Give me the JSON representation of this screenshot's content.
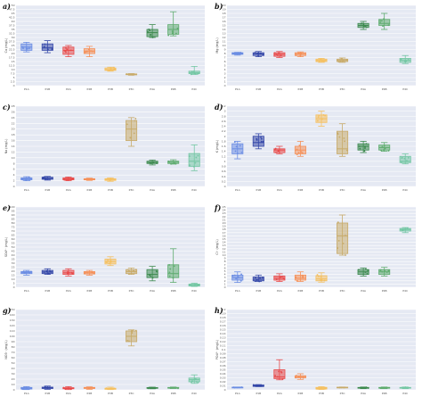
{
  "figure": {
    "colors": {
      "background": "#e5e9f3",
      "grid": "#ffffff"
    }
  },
  "chart_data": [
    {
      "panel": "a)",
      "type": "box",
      "ylabel": "Ca (mg/L)",
      "ylim": [
        0,
        50
      ],
      "yticks": [
        0,
        2.5,
        5,
        7.5,
        10,
        12.5,
        15,
        17.5,
        20,
        22.5,
        25,
        27.5,
        30,
        32.5,
        35,
        37.5,
        40,
        42.5,
        45,
        47.5,
        50
      ],
      "categories": [
        "P1A",
        "P1B",
        "P2A",
        "P2B",
        "P3B",
        "P3C",
        "P4A",
        "P4B",
        "P4C"
      ],
      "colors": [
        "#6b8de3",
        "#3447a8",
        "#e84a4a",
        "#f5915a",
        "#f5c060",
        "#c8ab6a",
        "#3d8a4f",
        "#5fac6f",
        "#74c7a4"
      ],
      "boxes": [
        {
          "min": 21.0,
          "q1": 22.0,
          "median": 24.0,
          "q3": 26.0,
          "max": 27.0
        },
        {
          "min": 20.5,
          "q1": 22.0,
          "median": 23.5,
          "q3": 26.0,
          "max": 28.0
        },
        {
          "min": 18.0,
          "q1": 19.5,
          "median": 22.0,
          "q3": 24.0,
          "max": 25.0
        },
        {
          "min": 18.0,
          "q1": 20.0,
          "median": 21.5,
          "q3": 23.0,
          "max": 24.5
        },
        {
          "min": 9.0,
          "q1": 9.5,
          "median": 10.0,
          "q3": 11.0,
          "max": 11.5
        },
        {
          "min": 6.5,
          "q1": 6.8,
          "median": 7.0,
          "q3": 7.3,
          "max": 7.5
        },
        {
          "min": 30.0,
          "q1": 30.5,
          "median": 33.0,
          "q3": 35.0,
          "max": 38.0
        },
        {
          "min": 31.0,
          "q1": 32.0,
          "median": 35.0,
          "q3": 38.0,
          "max": 46.0
        },
        {
          "min": 7.0,
          "q1": 7.5,
          "median": 8.0,
          "q3": 9.0,
          "max": 12.0
        }
      ]
    },
    {
      "panel": "b)",
      "type": "box",
      "ylabel": "Mg (mg/L)",
      "ylim": [
        0,
        20
      ],
      "yticks": [
        0,
        1,
        2,
        3,
        4,
        5,
        6,
        7,
        8,
        9,
        10,
        11,
        12,
        13,
        14,
        15,
        16,
        17,
        18,
        19,
        20
      ],
      "categories": [
        "P1A",
        "P1B",
        "P2A",
        "P2B",
        "P3B",
        "P3C",
        "P4A",
        "P4B",
        "P4C"
      ],
      "colors": [
        "#6b8de3",
        "#3447a8",
        "#e84a4a",
        "#f5915a",
        "#f5c060",
        "#c8ab6a",
        "#3d8a4f",
        "#5fac6f",
        "#74c7a4"
      ],
      "boxes": [
        {
          "min": 7.6,
          "q1": 7.8,
          "median": 8.0,
          "q3": 8.2,
          "max": 8.3
        },
        {
          "min": 7.2,
          "q1": 7.5,
          "median": 7.9,
          "q3": 8.2,
          "max": 8.5
        },
        {
          "min": 7.0,
          "q1": 7.3,
          "median": 7.8,
          "q3": 8.2,
          "max": 8.5
        },
        {
          "min": 7.2,
          "q1": 7.5,
          "median": 7.9,
          "q3": 8.2,
          "max": 8.4
        },
        {
          "min": 5.8,
          "q1": 6.0,
          "median": 6.3,
          "q3": 6.6,
          "max": 6.8
        },
        {
          "min": 5.8,
          "q1": 6.0,
          "median": 6.3,
          "q3": 6.6,
          "max": 6.9
        },
        {
          "min": 14.0,
          "q1": 14.5,
          "median": 15.0,
          "q3": 15.5,
          "max": 16.0
        },
        {
          "min": 14.0,
          "q1": 15.0,
          "median": 15.5,
          "q3": 16.5,
          "max": 18.0
        },
        {
          "min": 5.5,
          "q1": 5.8,
          "median": 6.3,
          "q3": 6.8,
          "max": 7.5
        }
      ]
    },
    {
      "panel": "c)",
      "type": "box",
      "ylabel": "Na (mg/L)",
      "ylim": [
        0,
        28
      ],
      "yticks": [
        0,
        2,
        4,
        6,
        8,
        10,
        12,
        14,
        16,
        18,
        20,
        22,
        24,
        26,
        28
      ],
      "categories": [
        "P1A",
        "P1B",
        "P2A",
        "P2B",
        "P3B",
        "P3C",
        "P4A",
        "P4B",
        "P4C"
      ],
      "colors": [
        "#6b8de3",
        "#3447a8",
        "#e84a4a",
        "#f5915a",
        "#f5c060",
        "#c8ab6a",
        "#3d8a4f",
        "#5fac6f",
        "#74c7a4"
      ],
      "boxes": [
        {
          "min": 2.0,
          "q1": 2.3,
          "median": 2.7,
          "q3": 3.0,
          "max": 3.4
        },
        {
          "min": 2.2,
          "q1": 2.5,
          "median": 2.8,
          "q3": 3.2,
          "max": 3.5
        },
        {
          "min": 2.0,
          "q1": 2.3,
          "median": 2.6,
          "q3": 3.0,
          "max": 3.3
        },
        {
          "min": 2.1,
          "q1": 2.3,
          "median": 2.5,
          "q3": 2.7,
          "max": 2.9
        },
        {
          "min": 1.8,
          "q1": 2.1,
          "median": 2.4,
          "q3": 2.7,
          "max": 3.0
        },
        {
          "min": 14.0,
          "q1": 16.0,
          "median": 20.0,
          "q3": 23.0,
          "max": 24.0
        },
        {
          "min": 7.5,
          "q1": 8.0,
          "median": 8.4,
          "q3": 8.8,
          "max": 9.2
        },
        {
          "min": 7.8,
          "q1": 8.0,
          "median": 8.5,
          "q3": 8.8,
          "max": 9.3
        },
        {
          "min": 5.5,
          "q1": 7.0,
          "median": 8.8,
          "q3": 11.5,
          "max": 14.5
        }
      ]
    },
    {
      "panel": "d)",
      "type": "box",
      "ylabel": "K (mg/L)",
      "ylim": [
        0,
        3.2
      ],
      "yticks": [
        0,
        0.2,
        0.4,
        0.6,
        0.8,
        1.0,
        1.2,
        1.4,
        1.6,
        1.8,
        2.0,
        2.2,
        2.4,
        2.6,
        2.8,
        3.0,
        3.2
      ],
      "categories": [
        "P1A",
        "P1B",
        "P2A",
        "P2B",
        "P3B",
        "P3C",
        "P4A",
        "P4B",
        "P4C"
      ],
      "colors": [
        "#6b8de3",
        "#3447a8",
        "#e84a4a",
        "#f5915a",
        "#f5c060",
        "#c8ab6a",
        "#3d8a4f",
        "#5fac6f",
        "#74c7a4"
      ],
      "boxes": [
        {
          "min": 1.1,
          "q1": 1.3,
          "median": 1.5,
          "q3": 1.7,
          "max": 1.8
        },
        {
          "min": 1.5,
          "q1": 1.6,
          "median": 1.75,
          "q3": 2.0,
          "max": 2.1
        },
        {
          "min": 1.3,
          "q1": 1.35,
          "median": 1.45,
          "q3": 1.5,
          "max": 1.6
        },
        {
          "min": 1.2,
          "q1": 1.3,
          "median": 1.45,
          "q3": 1.6,
          "max": 1.8
        },
        {
          "min": 2.4,
          "q1": 2.55,
          "median": 2.7,
          "q3": 2.85,
          "max": 3.0
        },
        {
          "min": 1.2,
          "q1": 1.3,
          "median": 1.5,
          "q3": 2.2,
          "max": 2.5
        },
        {
          "min": 1.35,
          "q1": 1.45,
          "median": 1.6,
          "q3": 1.7,
          "max": 1.8
        },
        {
          "min": 1.4,
          "q1": 1.45,
          "median": 1.55,
          "q3": 1.65,
          "max": 1.75
        },
        {
          "min": 0.9,
          "q1": 0.95,
          "median": 1.0,
          "q3": 1.2,
          "max": 1.3
        }
      ]
    },
    {
      "panel": "e)",
      "type": "box",
      "ylabel": "SO4²⁻ (mg/L)",
      "ylim": [
        0,
        100
      ],
      "yticks": [
        0,
        5,
        10,
        15,
        20,
        25,
        30,
        35,
        40,
        45,
        50,
        55,
        60,
        65,
        70,
        75,
        80,
        85,
        90,
        95,
        100
      ],
      "categories": [
        "P1A",
        "P1B",
        "P2A",
        "P2B",
        "P3B",
        "P3C",
        "P4A",
        "P4B",
        "P4C"
      ],
      "colors": [
        "#6b8de3",
        "#3447a8",
        "#e84a4a",
        "#f5915a",
        "#f5c060",
        "#c8ab6a",
        "#3d8a4f",
        "#5fac6f",
        "#74c7a4"
      ],
      "boxes": [
        {
          "min": 15.0,
          "q1": 17.0,
          "median": 18.5,
          "q3": 19.5,
          "max": 21.0
        },
        {
          "min": 16.0,
          "q1": 17.0,
          "median": 19.0,
          "q3": 21.0,
          "max": 23.0
        },
        {
          "min": 14.0,
          "q1": 16.0,
          "median": 18.0,
          "q3": 21.0,
          "max": 23.0
        },
        {
          "min": 15.0,
          "q1": 16.5,
          "median": 18.0,
          "q3": 19.5,
          "max": 21.0
        },
        {
          "min": 27.0,
          "q1": 29.0,
          "median": 32.0,
          "q3": 35.0,
          "max": 38.0
        },
        {
          "min": 16.0,
          "q1": 17.0,
          "median": 19.5,
          "q3": 22.0,
          "max": 24.0
        },
        {
          "min": 8.0,
          "q1": 12.0,
          "median": 16.0,
          "q3": 22.0,
          "max": 26.0
        },
        {
          "min": 6.0,
          "q1": 12.0,
          "median": 17.0,
          "q3": 28.0,
          "max": 48.0
        },
        {
          "min": 1.0,
          "q1": 1.5,
          "median": 2.5,
          "q3": 4.0,
          "max": 5.0
        }
      ]
    },
    {
      "panel": "f)",
      "type": "box",
      "ylabel": "Cl⁻ (mg/L)",
      "ylim": [
        0,
        25
      ],
      "yticks": [
        0,
        1,
        2,
        3,
        4,
        5,
        6,
        7,
        8,
        9,
        10,
        11,
        12,
        13,
        14,
        15,
        16,
        17,
        18,
        19,
        20,
        21,
        22,
        23,
        24,
        25
      ],
      "categories": [
        "P1A",
        "P1B",
        "P2A",
        "P2B",
        "P3B",
        "P3C",
        "P4A",
        "P4B",
        "P4C"
      ],
      "colors": [
        "#6b8de3",
        "#3447a8",
        "#e84a4a",
        "#f5915a",
        "#f5c060",
        "#c8ab6a",
        "#3d8a4f",
        "#5fac6f",
        "#74c7a4"
      ],
      "boxes": [
        {
          "min": 1.5,
          "q1": 2.2,
          "median": 3.0,
          "q3": 3.8,
          "max": 4.8
        },
        {
          "min": 1.8,
          "q1": 2.0,
          "median": 2.5,
          "q3": 3.2,
          "max": 3.8
        },
        {
          "min": 1.8,
          "q1": 2.2,
          "median": 2.8,
          "q3": 3.5,
          "max": 4.2
        },
        {
          "min": 1.8,
          "q1": 2.2,
          "median": 2.8,
          "q3": 3.8,
          "max": 4.8
        },
        {
          "min": 1.6,
          "q1": 2.0,
          "median": 2.6,
          "q3": 3.6,
          "max": 4.5
        },
        {
          "min": 10.0,
          "q1": 10.5,
          "median": 16.0,
          "q3": 20.0,
          "max": 22.5
        },
        {
          "min": 3.5,
          "q1": 4.0,
          "median": 4.8,
          "q3": 5.5,
          "max": 6.0
        },
        {
          "min": 3.5,
          "q1": 4.0,
          "median": 4.8,
          "q3": 5.5,
          "max": 6.2
        },
        {
          "min": 17.0,
          "q1": 17.5,
          "median": 18.0,
          "q3": 18.3,
          "max": 18.6
        }
      ]
    },
    {
      "panel": "g)",
      "type": "box",
      "ylabel": "NO3⁻ (mg/L)",
      "ylim": [
        0,
        150
      ],
      "yticks": [
        0,
        10,
        20,
        30,
        40,
        50,
        60,
        70,
        80,
        90,
        100,
        110,
        120,
        130,
        140,
        150
      ],
      "categories": [
        "P1A",
        "P1B",
        "P2A",
        "P2B",
        "P3B",
        "P3C",
        "P4A",
        "P4B",
        "P4C"
      ],
      "colors": [
        "#6b8de3",
        "#3447a8",
        "#e84a4a",
        "#f5915a",
        "#f5c060",
        "#c8ab6a",
        "#3d8a4f",
        "#5fac6f",
        "#74c7a4"
      ],
      "boxes": [
        {
          "min": 0.5,
          "q1": 1.5,
          "median": 3.0,
          "q3": 4.5,
          "max": 6.0
        },
        {
          "min": 1.0,
          "q1": 2.5,
          "median": 3.5,
          "q3": 5.0,
          "max": 7.0
        },
        {
          "min": 0.5,
          "q1": 2.0,
          "median": 3.0,
          "q3": 4.0,
          "max": 6.0
        },
        {
          "min": 1.0,
          "q1": 2.5,
          "median": 3.5,
          "q3": 4.5,
          "max": 5.5
        },
        {
          "min": 0.5,
          "q1": 1.0,
          "median": 2.0,
          "q3": 3.0,
          "max": 5.0
        },
        {
          "min": 82.0,
          "q1": 90.0,
          "median": 100.0,
          "q3": 110.0,
          "max": 112.0
        },
        {
          "min": 2.0,
          "q1": 2.8,
          "median": 3.5,
          "q3": 4.2,
          "max": 5.0
        },
        {
          "min": 2.5,
          "q1": 3.0,
          "median": 3.8,
          "q3": 4.5,
          "max": 5.2
        },
        {
          "min": 12.0,
          "q1": 15.0,
          "median": 19.0,
          "q3": 22.0,
          "max": 28.0
        }
      ]
    },
    {
      "panel": "h)",
      "type": "box",
      "ylabel": "PO4³⁻ (mg/L)",
      "ylim": [
        0,
        0.2
      ],
      "yticks": [
        0,
        0.01,
        0.02,
        0.03,
        0.04,
        0.05,
        0.06,
        0.07,
        0.08,
        0.09,
        0.1,
        0.11,
        0.12,
        0.13,
        0.14,
        0.15,
        0.16,
        0.17,
        0.18,
        0.19,
        0.2
      ],
      "categories": [
        "P1A",
        "P1B",
        "P2A",
        "P2B",
        "P3B",
        "P3C",
        "P4A",
        "P4B",
        "P4C"
      ],
      "colors": [
        "#6b8de3",
        "#3447a8",
        "#e84a4a",
        "#f5915a",
        "#f5c060",
        "#c8ab6a",
        "#3d8a4f",
        "#5fac6f",
        "#74c7a4"
      ],
      "boxes": [
        {
          "min": 0.005,
          "q1": 0.0055,
          "median": 0.006,
          "q3": 0.0065,
          "max": 0.007
        },
        {
          "min": 0.008,
          "q1": 0.0085,
          "median": 0.01,
          "q3": 0.012,
          "max": 0.013
        },
        {
          "min": 0.025,
          "q1": 0.028,
          "median": 0.032,
          "q3": 0.05,
          "max": 0.075
        },
        {
          "min": 0.026,
          "q1": 0.03,
          "median": 0.033,
          "q3": 0.035,
          "max": 0.04
        },
        {
          "min": 0.001,
          "q1": 0.002,
          "median": 0.004,
          "q3": 0.006,
          "max": 0.008
        },
        {
          "min": 0.005,
          "q1": 0.0055,
          "median": 0.006,
          "q3": 0.0065,
          "max": 0.007
        },
        {
          "min": 0.003,
          "q1": 0.004,
          "median": 0.005,
          "q3": 0.006,
          "max": 0.007
        },
        {
          "min": 0.003,
          "q1": 0.004,
          "median": 0.005,
          "q3": 0.006,
          "max": 0.007
        },
        {
          "min": 0.003,
          "q1": 0.004,
          "median": 0.005,
          "q3": 0.006,
          "max": 0.007
        }
      ]
    }
  ]
}
